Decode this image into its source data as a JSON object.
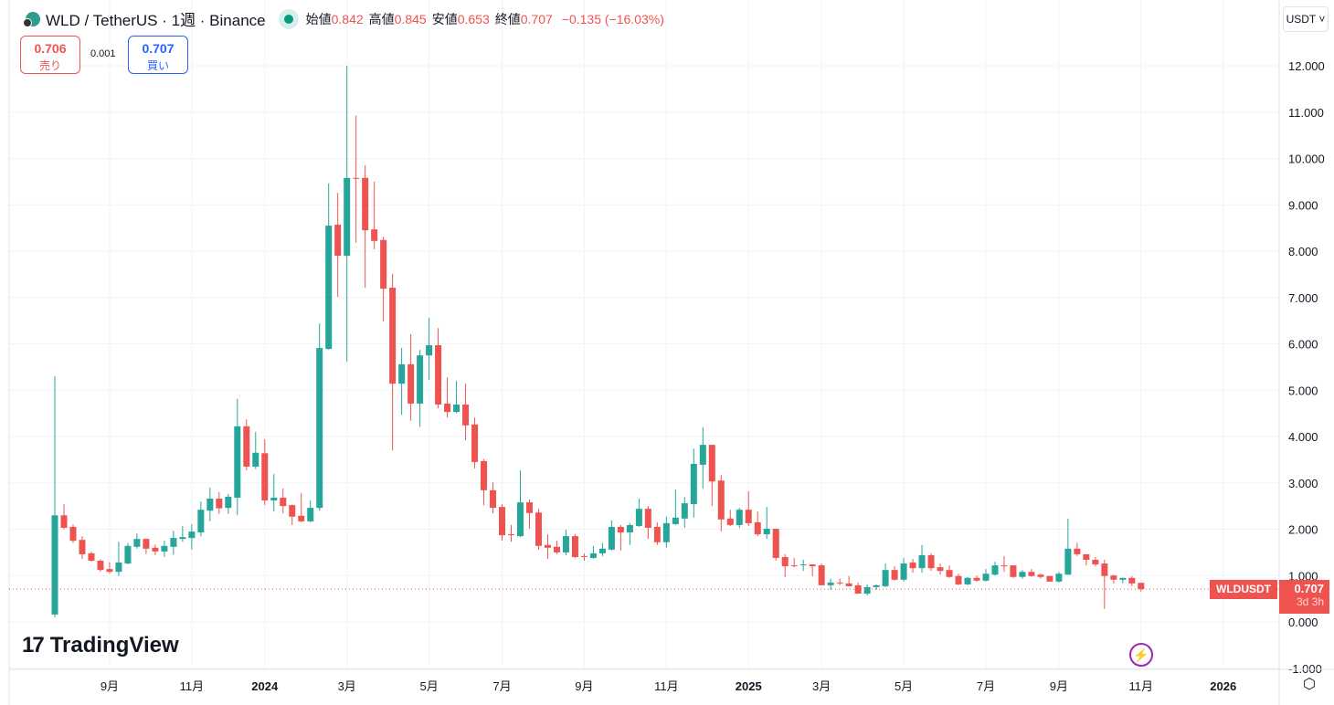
{
  "header": {
    "symbol_title": "WLD / TetherUS · 1週 · Binance",
    "open_label": "始値",
    "open": "0.842",
    "high_label": "高値",
    "high": "0.845",
    "low_label": "安値",
    "low": "0.653",
    "close_label": "終値",
    "close": "0.707",
    "change": "−0.135 (−16.03%)"
  },
  "trade": {
    "sell_price": "0.706",
    "sell_label": "売り",
    "spread": "0.001",
    "buy_price": "0.707",
    "buy_label": "買い"
  },
  "currency_selector": "USDT ˅",
  "last_price": {
    "symbol": "WLDUSDT",
    "price": "0.707",
    "countdown": "3d 3h"
  },
  "branding": {
    "logo_mark": "17",
    "logo_text": "TradingView"
  },
  "colors": {
    "up": "#26a69a",
    "down": "#ef5350",
    "grid": "#f0f3fa",
    "last_price": "#ef5350"
  },
  "icons": {
    "bolt": "lightning-icon",
    "settings": "settings-icon"
  },
  "chart_data": {
    "type": "candlestick",
    "interval": "1週",
    "ylim": [
      -1,
      12
    ],
    "grid": true,
    "y_ticks": [
      "12.000",
      "11.000",
      "10.000",
      "9.000",
      "8.000",
      "7.000",
      "6.000",
      "5.000",
      "4.000",
      "3.000",
      "2.000",
      "1.000",
      "0.000",
      "-1.000"
    ],
    "x_ticks": [
      {
        "label": "9月",
        "date": "2023-09-04"
      },
      {
        "label": "11月",
        "date": "2023-11-06"
      },
      {
        "label": "2024",
        "date": "2024-01-01"
      },
      {
        "label": "3月",
        "date": "2024-03-04"
      },
      {
        "label": "5月",
        "date": "2024-05-06"
      },
      {
        "label": "7月",
        "date": "2024-07-01"
      },
      {
        "label": "9月",
        "date": "2024-09-02"
      },
      {
        "label": "11月",
        "date": "2024-11-04"
      },
      {
        "label": "2025",
        "date": "2025-01-06"
      },
      {
        "label": "3月",
        "date": "2025-03-03"
      },
      {
        "label": "5月",
        "date": "2025-05-05"
      },
      {
        "label": "7月",
        "date": "2025-07-07"
      },
      {
        "label": "9月",
        "date": "2025-09-01"
      },
      {
        "label": "11月",
        "date": "2025-11-03"
      },
      {
        "label": "2026",
        "date": "2026-01-05"
      }
    ],
    "columns": [
      "date",
      "open",
      "high",
      "low",
      "close"
    ],
    "candles": [
      [
        "2023-07-24",
        0.16,
        5.3,
        0.1,
        2.3
      ],
      [
        "2023-07-31",
        2.3,
        2.54,
        2.0,
        2.03
      ],
      [
        "2023-08-07",
        2.05,
        2.1,
        1.7,
        1.75
      ],
      [
        "2023-08-14",
        1.77,
        1.85,
        1.36,
        1.46
      ],
      [
        "2023-08-21",
        1.48,
        1.52,
        1.3,
        1.32
      ],
      [
        "2023-08-28",
        1.32,
        1.35,
        1.08,
        1.12
      ],
      [
        "2023-09-04",
        1.14,
        1.29,
        1.04,
        1.08
      ],
      [
        "2023-09-11",
        1.08,
        1.73,
        0.99,
        1.28
      ],
      [
        "2023-09-18",
        1.26,
        1.7,
        1.24,
        1.64
      ],
      [
        "2023-09-25",
        1.62,
        1.91,
        1.58,
        1.79
      ],
      [
        "2023-10-02",
        1.79,
        1.8,
        1.46,
        1.58
      ],
      [
        "2023-10-09",
        1.6,
        1.67,
        1.44,
        1.52
      ],
      [
        "2023-10-16",
        1.52,
        1.75,
        1.4,
        1.64
      ],
      [
        "2023-10-23",
        1.62,
        1.97,
        1.45,
        1.81
      ],
      [
        "2023-10-30",
        1.79,
        2.07,
        1.73,
        1.83
      ],
      [
        "2023-11-06",
        1.81,
        2.11,
        1.56,
        1.95
      ],
      [
        "2023-11-13",
        1.93,
        2.6,
        1.85,
        2.42
      ],
      [
        "2023-11-20",
        2.4,
        2.9,
        2.17,
        2.66
      ],
      [
        "2023-11-27",
        2.66,
        2.8,
        2.33,
        2.45
      ],
      [
        "2023-12-04",
        2.46,
        2.76,
        2.33,
        2.7
      ],
      [
        "2023-12-11",
        2.68,
        4.81,
        2.31,
        4.22
      ],
      [
        "2023-12-18",
        4.22,
        4.37,
        3.27,
        3.35
      ],
      [
        "2023-12-25",
        3.35,
        4.1,
        3.3,
        3.65
      ],
      [
        "2024-01-01",
        3.64,
        3.94,
        2.52,
        2.62
      ],
      [
        "2024-01-08",
        2.62,
        3.19,
        2.38,
        2.68
      ],
      [
        "2024-01-15",
        2.68,
        2.88,
        2.34,
        2.5
      ],
      [
        "2024-01-22",
        2.52,
        2.53,
        2.09,
        2.27
      ],
      [
        "2024-01-29",
        2.29,
        2.78,
        2.15,
        2.17
      ],
      [
        "2024-02-05",
        2.17,
        2.62,
        2.15,
        2.46
      ],
      [
        "2024-02-12",
        2.46,
        6.44,
        2.4,
        5.91
      ],
      [
        "2024-02-19",
        5.89,
        9.46,
        5.87,
        8.55
      ],
      [
        "2024-02-26",
        8.57,
        9.26,
        7.01,
        7.9
      ],
      [
        "2024-03-04",
        7.9,
        12.0,
        5.62,
        9.58
      ],
      [
        "2024-03-11",
        9.58,
        10.92,
        8.18,
        9.56
      ],
      [
        "2024-03-18",
        9.58,
        9.85,
        7.21,
        8.45
      ],
      [
        "2024-03-25",
        8.47,
        9.5,
        8.04,
        8.22
      ],
      [
        "2024-04-01",
        8.24,
        8.31,
        6.48,
        7.19
      ],
      [
        "2024-04-08",
        7.21,
        7.51,
        3.7,
        5.14
      ],
      [
        "2024-04-15",
        5.14,
        5.91,
        4.47,
        5.56
      ],
      [
        "2024-04-22",
        5.56,
        6.21,
        4.34,
        4.71
      ],
      [
        "2024-04-29",
        4.71,
        5.87,
        4.21,
        5.75
      ],
      [
        "2024-05-06",
        5.75,
        6.56,
        5.22,
        5.97
      ],
      [
        "2024-05-13",
        5.97,
        6.34,
        4.61,
        4.69
      ],
      [
        "2024-05-20",
        4.71,
        5.28,
        4.41,
        4.53
      ],
      [
        "2024-05-27",
        4.53,
        5.2,
        4.5,
        4.69
      ],
      [
        "2024-06-03",
        4.69,
        5.14,
        3.92,
        4.24
      ],
      [
        "2024-06-10",
        4.26,
        4.41,
        3.31,
        3.45
      ],
      [
        "2024-06-17",
        3.47,
        3.51,
        2.52,
        2.84
      ],
      [
        "2024-06-24",
        2.84,
        3.01,
        2.34,
        2.46
      ],
      [
        "2024-07-01",
        2.48,
        2.54,
        1.75,
        1.87
      ],
      [
        "2024-07-08",
        1.89,
        2.09,
        1.73,
        1.87
      ],
      [
        "2024-07-15",
        1.85,
        3.27,
        1.83,
        2.58
      ],
      [
        "2024-07-22",
        2.58,
        2.64,
        2.01,
        2.35
      ],
      [
        "2024-07-29",
        2.36,
        2.44,
        1.56,
        1.64
      ],
      [
        "2024-08-05",
        1.66,
        1.89,
        1.36,
        1.6
      ],
      [
        "2024-08-12",
        1.62,
        1.75,
        1.46,
        1.5
      ],
      [
        "2024-08-19",
        1.5,
        1.99,
        1.44,
        1.85
      ],
      [
        "2024-08-26",
        1.85,
        1.89,
        1.38,
        1.4
      ],
      [
        "2024-09-02",
        1.42,
        1.48,
        1.32,
        1.4
      ],
      [
        "2024-09-09",
        1.38,
        1.64,
        1.36,
        1.48
      ],
      [
        "2024-09-16",
        1.48,
        1.7,
        1.42,
        1.58
      ],
      [
        "2024-09-23",
        1.56,
        2.19,
        1.54,
        2.05
      ],
      [
        "2024-09-30",
        2.05,
        2.09,
        1.54,
        1.93
      ],
      [
        "2024-10-07",
        1.93,
        2.13,
        1.66,
        2.09
      ],
      [
        "2024-10-14",
        2.07,
        2.66,
        2.05,
        2.44
      ],
      [
        "2024-10-21",
        2.44,
        2.5,
        1.79,
        2.03
      ],
      [
        "2024-10-28",
        2.05,
        2.15,
        1.66,
        1.72
      ],
      [
        "2024-11-04",
        1.72,
        2.27,
        1.6,
        2.13
      ],
      [
        "2024-11-11",
        2.11,
        2.86,
        2.09,
        2.25
      ],
      [
        "2024-11-18",
        2.23,
        2.7,
        2.03,
        2.56
      ],
      [
        "2024-11-25",
        2.54,
        3.74,
        2.25,
        3.41
      ],
      [
        "2024-12-02",
        3.39,
        4.2,
        2.88,
        3.82
      ],
      [
        "2024-12-09",
        3.82,
        3.82,
        2.5,
        3.03
      ],
      [
        "2024-12-16",
        3.05,
        3.17,
        1.95,
        2.21
      ],
      [
        "2024-12-23",
        2.23,
        2.42,
        2.07,
        2.09
      ],
      [
        "2024-12-30",
        2.09,
        2.46,
        2.03,
        2.42
      ],
      [
        "2025-01-06",
        2.42,
        2.82,
        2.07,
        2.13
      ],
      [
        "2025-01-13",
        2.15,
        2.38,
        1.85,
        1.89
      ],
      [
        "2025-01-20",
        1.89,
        2.48,
        1.79,
        2.01
      ],
      [
        "2025-01-27",
        2.01,
        2.01,
        1.32,
        1.38
      ],
      [
        "2025-02-03",
        1.4,
        1.46,
        0.97,
        1.2
      ],
      [
        "2025-02-10",
        1.22,
        1.38,
        1.18,
        1.2
      ],
      [
        "2025-02-17",
        1.22,
        1.34,
        1.1,
        1.24
      ],
      [
        "2025-02-24",
        1.24,
        1.24,
        0.99,
        1.2
      ],
      [
        "2025-03-03",
        1.22,
        1.26,
        0.79,
        0.79
      ],
      [
        "2025-03-10",
        0.79,
        0.93,
        0.69,
        0.85
      ],
      [
        "2025-03-17",
        0.85,
        0.93,
        0.79,
        0.83
      ],
      [
        "2025-03-24",
        0.83,
        0.99,
        0.77,
        0.77
      ],
      [
        "2025-03-31",
        0.79,
        0.85,
        0.61,
        0.61
      ],
      [
        "2025-04-07",
        0.61,
        0.81,
        0.57,
        0.75
      ],
      [
        "2025-04-14",
        0.75,
        0.81,
        0.69,
        0.79
      ],
      [
        "2025-04-21",
        0.77,
        1.26,
        0.75,
        1.12
      ],
      [
        "2025-04-28",
        1.12,
        1.2,
        0.89,
        0.91
      ],
      [
        "2025-05-05",
        0.91,
        1.38,
        0.87,
        1.26
      ],
      [
        "2025-05-12",
        1.28,
        1.36,
        1.06,
        1.16
      ],
      [
        "2025-05-19",
        1.16,
        1.66,
        1.06,
        1.44
      ],
      [
        "2025-05-26",
        1.44,
        1.48,
        1.1,
        1.16
      ],
      [
        "2025-06-02",
        1.18,
        1.26,
        1.02,
        1.1
      ],
      [
        "2025-06-09",
        1.12,
        1.22,
        0.95,
        0.97
      ],
      [
        "2025-06-16",
        0.99,
        1.04,
        0.79,
        0.81
      ],
      [
        "2025-06-23",
        0.81,
        0.97,
        0.79,
        0.95
      ],
      [
        "2025-06-30",
        0.95,
        1.0,
        0.87,
        0.89
      ],
      [
        "2025-07-07",
        0.89,
        1.14,
        0.87,
        1.04
      ],
      [
        "2025-07-14",
        1.02,
        1.3,
        1.0,
        1.22
      ],
      [
        "2025-07-21",
        1.22,
        1.42,
        1.08,
        1.2
      ],
      [
        "2025-07-28",
        1.22,
        1.22,
        0.95,
        0.97
      ],
      [
        "2025-08-04",
        0.97,
        1.12,
        0.93,
        1.08
      ],
      [
        "2025-08-11",
        1.08,
        1.14,
        0.97,
        0.99
      ],
      [
        "2025-08-18",
        1.02,
        1.04,
        0.93,
        0.97
      ],
      [
        "2025-08-25",
        0.99,
        0.99,
        0.87,
        0.87
      ],
      [
        "2025-09-01",
        0.87,
        1.08,
        0.85,
        1.04
      ],
      [
        "2025-09-08",
        1.02,
        2.23,
        1.02,
        1.58
      ],
      [
        "2025-09-15",
        1.58,
        1.71,
        1.42,
        1.46
      ],
      [
        "2025-09-22",
        1.46,
        1.46,
        1.22,
        1.34
      ],
      [
        "2025-09-29",
        1.34,
        1.4,
        1.2,
        1.24
      ],
      [
        "2025-10-06",
        1.26,
        1.34,
        0.28,
        0.99
      ],
      [
        "2025-10-13",
        1.0,
        1.02,
        0.83,
        0.91
      ],
      [
        "2025-10-20",
        0.91,
        0.95,
        0.83,
        0.95
      ],
      [
        "2025-10-27",
        0.95,
        0.99,
        0.77,
        0.83
      ],
      [
        "2025-11-03",
        0.842,
        0.845,
        0.653,
        0.707
      ]
    ]
  }
}
